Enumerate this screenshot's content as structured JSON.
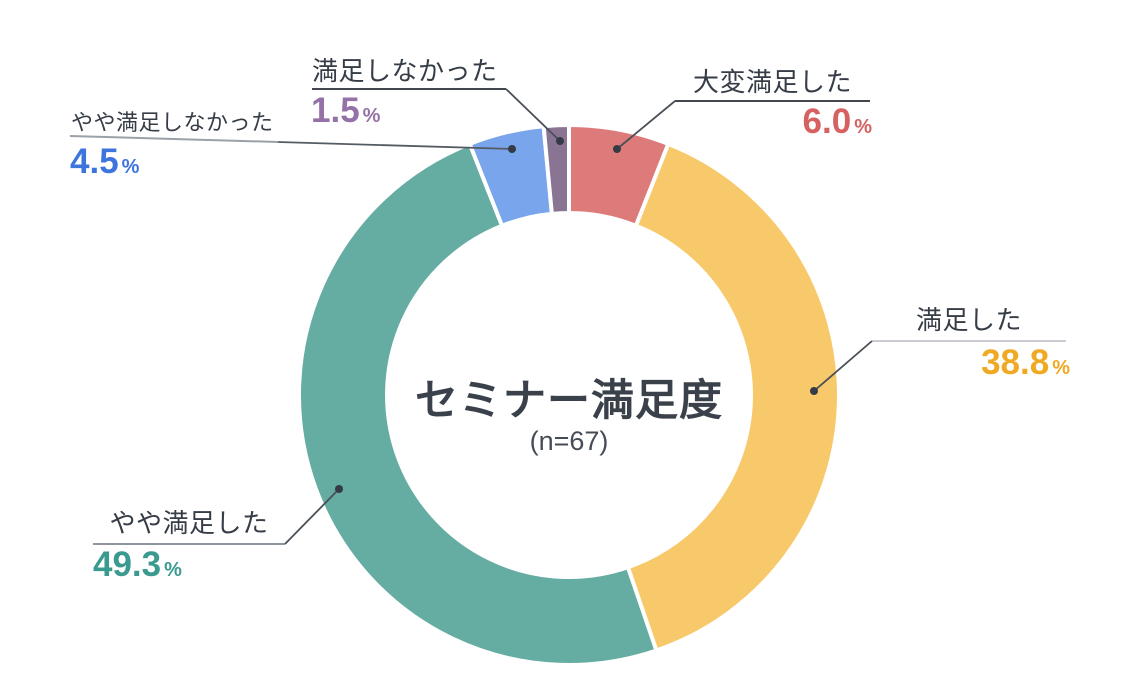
{
  "chart_data": {
    "type": "pie",
    "subtype": "donut",
    "title": "セミナー満足度",
    "subtitle": "(n=67)",
    "unit": "%",
    "start_angle": "12-oclock, clockwise",
    "inner_radius_ratio": 0.674,
    "segments": [
      {
        "label": "大変満足した",
        "value": 6.0,
        "display": "6.0",
        "color": "#DD7A7A",
        "value_color": "#D66161"
      },
      {
        "label": "満足した",
        "value": 38.8,
        "display": "38.8",
        "color": "#F8C96A",
        "value_color": "#F0A922"
      },
      {
        "label": "やや満足した",
        "value": 49.3,
        "display": "49.3",
        "color": "#65ACA2",
        "value_color": "#3A9A90"
      },
      {
        "label": "やや満足しなかった",
        "value": 4.5,
        "display": "4.5",
        "color": "#79A5EC",
        "value_color": "#3E75DC"
      },
      {
        "label": "満足しなかった",
        "value": 1.5,
        "display": "1.5",
        "color": "#8A7493",
        "value_color": "#9471A6"
      }
    ]
  }
}
